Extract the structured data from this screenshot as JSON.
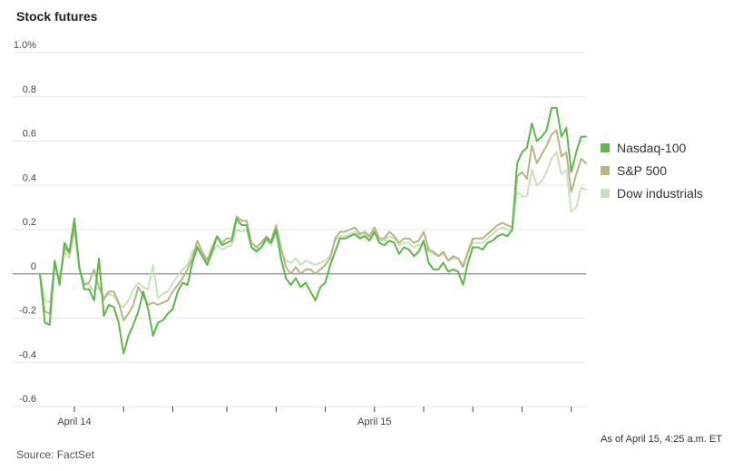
{
  "title": "Stock futures",
  "source": "Source: FactSet",
  "as_of": "As of April 15, 4:25 a.m. ET",
  "colors": {
    "nasdaq": "#5cb84a",
    "sp500": "#b8b484",
    "dow": "#c6e3bb",
    "grid": "#e6e6e6",
    "zero": "#888888"
  },
  "chart_data": {
    "type": "line",
    "title": "Stock futures",
    "ylim": [
      -0.6,
      1.0
    ],
    "yticks": [
      {
        "value": 1.0,
        "label": "1.0%"
      },
      {
        "value": 0.8,
        "label": "0.8"
      },
      {
        "value": 0.6,
        "label": "0.6"
      },
      {
        "value": 0.4,
        "label": "0.4"
      },
      {
        "value": 0.2,
        "label": "0.2"
      },
      {
        "value": 0.0,
        "label": "0"
      },
      {
        "value": -0.2,
        "label": "-0.2"
      },
      {
        "value": -0.4,
        "label": "-0.4"
      },
      {
        "value": -0.6,
        "label": "-0.6"
      }
    ],
    "xlim": [
      0,
      111
    ],
    "xticks": [
      {
        "value": 7,
        "label": "April 14"
      },
      {
        "value": 17,
        "label": ""
      },
      {
        "value": 27,
        "label": ""
      },
      {
        "value": 38,
        "label": ""
      },
      {
        "value": 48,
        "label": ""
      },
      {
        "value": 58,
        "label": ""
      },
      {
        "value": 68,
        "label": "April 15"
      },
      {
        "value": 78,
        "label": ""
      },
      {
        "value": 88,
        "label": ""
      },
      {
        "value": 98,
        "label": ""
      },
      {
        "value": 108,
        "label": ""
      }
    ],
    "grid": true,
    "legend_position": "right",
    "series": [
      {
        "name": "Nasdaq-100",
        "color": "#5cb84a",
        "x": [
          0,
          1,
          2,
          3,
          4,
          5,
          6,
          7,
          8,
          9,
          10,
          11,
          12,
          13,
          14,
          15,
          16,
          17,
          18,
          19,
          20,
          21,
          22,
          23,
          24,
          25,
          26,
          27,
          28,
          29,
          30,
          31,
          32,
          33,
          34,
          35,
          36,
          37,
          38,
          39,
          40,
          41,
          42,
          43,
          44,
          45,
          46,
          47,
          48,
          49,
          50,
          51,
          52,
          53,
          54,
          55,
          56,
          57,
          58,
          59,
          60,
          61,
          62,
          63,
          64,
          65,
          66,
          67,
          68,
          69,
          70,
          71,
          72,
          73,
          74,
          75,
          76,
          77,
          78,
          79,
          80,
          81,
          82,
          83,
          84,
          85,
          86,
          87,
          88,
          89,
          90,
          91,
          92,
          93,
          94,
          95,
          96,
          97,
          98,
          99,
          100,
          101,
          102,
          103,
          104,
          105,
          106,
          107,
          108,
          109,
          110,
          111
        ],
        "y": [
          0.0,
          -0.22,
          -0.23,
          0.06,
          -0.05,
          0.14,
          0.1,
          0.25,
          0.03,
          -0.07,
          -0.07,
          -0.12,
          0.07,
          -0.19,
          -0.14,
          -0.15,
          -0.22,
          -0.36,
          -0.28,
          -0.23,
          -0.17,
          -0.08,
          -0.16,
          -0.28,
          -0.22,
          -0.21,
          -0.18,
          -0.16,
          -0.08,
          -0.04,
          -0.05,
          0.05,
          0.12,
          0.08,
          0.04,
          0.1,
          0.17,
          0.13,
          0.14,
          0.15,
          0.25,
          0.22,
          0.22,
          0.12,
          0.1,
          0.12,
          0.16,
          0.14,
          0.2,
          0.07,
          -0.02,
          -0.05,
          -0.02,
          -0.06,
          -0.04,
          -0.08,
          -0.12,
          -0.06,
          -0.04,
          0.04,
          0.1,
          0.16,
          0.16,
          0.17,
          0.18,
          0.16,
          0.17,
          0.15,
          0.19,
          0.14,
          0.13,
          0.15,
          0.14,
          0.09,
          0.12,
          0.11,
          0.08,
          0.1,
          0.15,
          0.05,
          0.02,
          0.02,
          0.05,
          0.01,
          0.02,
          0.01,
          -0.05,
          0.05,
          0.12,
          0.12,
          0.11,
          0.14,
          0.15,
          0.17,
          0.18,
          0.17,
          0.2,
          0.5,
          0.55,
          0.57,
          0.68,
          0.6,
          0.62,
          0.65,
          0.75,
          0.75,
          0.62,
          0.66,
          0.46,
          0.55,
          0.62,
          0.62
        ]
      },
      {
        "name": "S&P 500",
        "color": "#b8b484",
        "x": [
          0,
          1,
          2,
          3,
          4,
          5,
          6,
          7,
          8,
          9,
          10,
          11,
          12,
          13,
          14,
          15,
          16,
          17,
          18,
          19,
          20,
          21,
          22,
          23,
          24,
          25,
          26,
          27,
          28,
          29,
          30,
          31,
          32,
          33,
          34,
          35,
          36,
          37,
          38,
          39,
          40,
          41,
          42,
          43,
          44,
          45,
          46,
          47,
          48,
          49,
          50,
          51,
          52,
          53,
          54,
          55,
          56,
          57,
          58,
          59,
          60,
          61,
          62,
          63,
          64,
          65,
          66,
          67,
          68,
          69,
          70,
          71,
          72,
          73,
          74,
          75,
          76,
          77,
          78,
          79,
          80,
          81,
          82,
          83,
          84,
          85,
          86,
          87,
          88,
          89,
          90,
          91,
          92,
          93,
          94,
          95,
          96,
          97,
          98,
          99,
          100,
          101,
          102,
          103,
          104,
          105,
          106,
          107,
          108,
          109,
          110,
          111
        ],
        "y": [
          0.0,
          -0.17,
          -0.18,
          0.05,
          -0.04,
          0.12,
          0.09,
          0.22,
          0.03,
          -0.05,
          -0.04,
          0.02,
          -0.06,
          -0.11,
          -0.08,
          -0.08,
          -0.13,
          -0.21,
          -0.18,
          -0.14,
          -0.06,
          -0.1,
          -0.14,
          -0.13,
          -0.14,
          -0.13,
          -0.12,
          -0.08,
          -0.05,
          -0.02,
          0.02,
          0.07,
          0.15,
          0.1,
          0.06,
          0.12,
          0.17,
          0.14,
          0.16,
          0.16,
          0.26,
          0.24,
          0.24,
          0.14,
          0.12,
          0.14,
          0.17,
          0.15,
          0.22,
          0.12,
          0.03,
          0.0,
          0.03,
          0.0,
          0.02,
          0.02,
          0.0,
          0.02,
          0.04,
          0.07,
          0.16,
          0.19,
          0.19,
          0.2,
          0.21,
          0.18,
          0.19,
          0.17,
          0.21,
          0.16,
          0.16,
          0.19,
          0.17,
          0.14,
          0.16,
          0.16,
          0.14,
          0.15,
          0.19,
          0.11,
          0.1,
          0.08,
          0.1,
          0.06,
          0.08,
          0.07,
          0.03,
          0.1,
          0.16,
          0.16,
          0.16,
          0.18,
          0.2,
          0.22,
          0.23,
          0.22,
          0.21,
          0.44,
          0.46,
          0.43,
          0.58,
          0.5,
          0.54,
          0.58,
          0.63,
          0.65,
          0.53,
          0.55,
          0.37,
          0.45,
          0.52,
          0.5
        ]
      },
      {
        "name": "Dow industrials",
        "color": "#c6e3bb",
        "x": [
          0,
          1,
          2,
          3,
          4,
          5,
          6,
          7,
          8,
          9,
          10,
          11,
          12,
          13,
          14,
          15,
          16,
          17,
          18,
          19,
          20,
          21,
          22,
          23,
          24,
          25,
          26,
          27,
          28,
          29,
          30,
          31,
          32,
          33,
          34,
          35,
          36,
          37,
          38,
          39,
          40,
          41,
          42,
          43,
          44,
          45,
          46,
          47,
          48,
          49,
          50,
          51,
          52,
          53,
          54,
          55,
          56,
          57,
          58,
          59,
          60,
          61,
          62,
          63,
          64,
          65,
          66,
          67,
          68,
          69,
          70,
          71,
          72,
          73,
          74,
          75,
          76,
          77,
          78,
          79,
          80,
          81,
          82,
          83,
          84,
          85,
          86,
          87,
          88,
          89,
          90,
          91,
          92,
          93,
          94,
          95,
          96,
          97,
          98,
          99,
          100,
          101,
          102,
          103,
          104,
          105,
          106,
          107,
          108,
          109,
          110,
          111
        ],
        "y": [
          0.0,
          -0.12,
          -0.13,
          0.04,
          -0.02,
          0.1,
          0.07,
          0.2,
          0.02,
          -0.04,
          -0.05,
          -0.08,
          -0.06,
          -0.12,
          -0.09,
          -0.1,
          -0.14,
          -0.15,
          -0.12,
          -0.07,
          -0.04,
          -0.06,
          -0.07,
          0.04,
          -0.11,
          -0.09,
          -0.08,
          -0.04,
          -0.01,
          0.02,
          0.04,
          0.1,
          0.13,
          0.08,
          0.05,
          0.09,
          0.13,
          0.11,
          0.12,
          0.13,
          0.2,
          0.19,
          0.2,
          0.12,
          0.11,
          0.12,
          0.15,
          0.13,
          0.18,
          0.1,
          0.06,
          0.05,
          0.07,
          0.04,
          0.06,
          0.05,
          0.04,
          0.05,
          0.06,
          0.08,
          0.15,
          0.17,
          0.17,
          0.18,
          0.19,
          0.17,
          0.18,
          0.16,
          0.19,
          0.15,
          0.15,
          0.17,
          0.16,
          0.13,
          0.14,
          0.14,
          0.12,
          0.13,
          0.14,
          0.1,
          0.09,
          0.08,
          0.09,
          0.06,
          0.07,
          0.07,
          0.04,
          0.09,
          0.14,
          0.14,
          0.14,
          0.16,
          0.18,
          0.2,
          0.21,
          0.2,
          0.19,
          0.37,
          0.35,
          0.35,
          0.47,
          0.4,
          0.42,
          0.46,
          0.52,
          0.55,
          0.45,
          0.47,
          0.28,
          0.3,
          0.39,
          0.38
        ]
      }
    ]
  }
}
